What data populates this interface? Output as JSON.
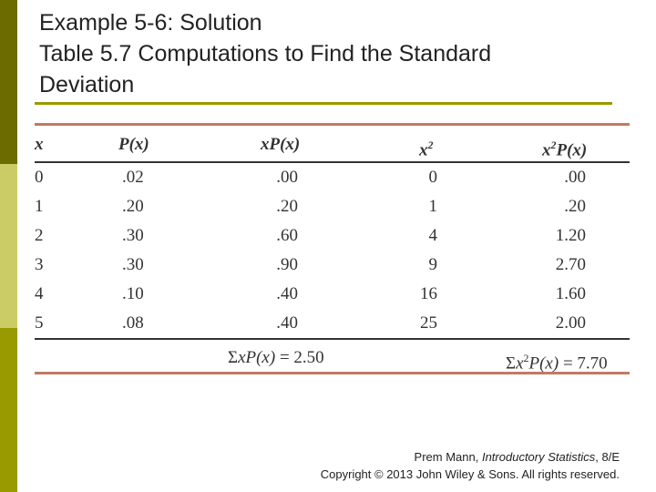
{
  "colors": {
    "sidebar_top": "#6b6b00",
    "sidebar_mid": "#cccc66",
    "sidebar_bottom": "#999900",
    "title_rule": "#999900",
    "table_rule": "#c17a63"
  },
  "title": {
    "line1": "Example 5-6: Solution",
    "line2": "Table 5.7 Computations to Find the Standard",
    "line3": "Deviation"
  },
  "table": {
    "headers": {
      "x": "x",
      "px_base": "P(x)",
      "xpx": "xP(x)",
      "x2_base": "x",
      "x2_exp": "2",
      "x2px_base": "x",
      "x2px_exp": "2",
      "x2px_rest": "P(x)"
    },
    "rows": [
      {
        "x": "0",
        "px": ".02",
        "xpx": ".00",
        "x2": "0",
        "x2px": ".00"
      },
      {
        "x": "1",
        "px": ".20",
        "xpx": ".20",
        "x2": "1",
        "x2px": ".20"
      },
      {
        "x": "2",
        "px": ".30",
        "xpx": ".60",
        "x2": "4",
        "x2px": "1.20"
      },
      {
        "x": "3",
        "px": ".30",
        "xpx": ".90",
        "x2": "9",
        "x2px": "2.70"
      },
      {
        "x": "4",
        "px": ".10",
        "xpx": ".40",
        "x2": "16",
        "x2px": "1.60"
      },
      {
        "x": "5",
        "px": ".08",
        "xpx": ".40",
        "x2": "25",
        "x2px": "2.00"
      }
    ],
    "sums": {
      "sum1_symbol": "Σ",
      "sum1_expr": "xP(x)",
      "sum1_eq": "= 2.50",
      "sum2_symbol": "Σ",
      "sum2_x": "x",
      "sum2_exp": "2",
      "sum2_rest": "P(x)",
      "sum2_eq": "= 7.70"
    }
  },
  "footer": {
    "author": "Prem Mann, ",
    "book": "Introductory Statistics",
    "edition": ", 8/E",
    "copyright": "Copyright © 2013 John Wiley & Sons. All rights reserved."
  }
}
